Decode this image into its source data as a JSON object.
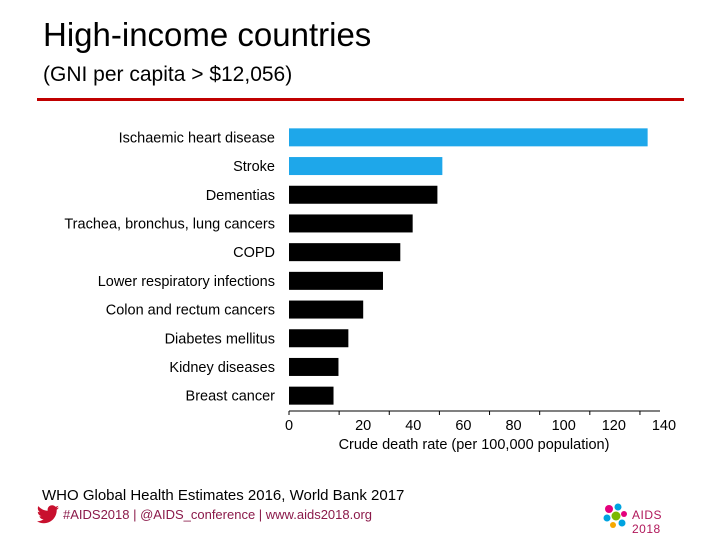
{
  "header": {
    "title": "High-income countries",
    "subtitle": "(GNI per capita > $12,056)"
  },
  "chart_data": {
    "type": "bar",
    "orientation": "horizontal",
    "categories": [
      "Ischaemic heart disease",
      "Stroke",
      "Dementias",
      "Trachea, bronchus, lung cancers",
      "COPD",
      "Lower respiratory infections",
      "Colon and rectum cancers",
      "Diabetes mellitus",
      "Kidney diseases",
      "Breast cancer"
    ],
    "values": [
      145,
      62,
      60,
      50,
      45,
      38,
      30,
      24,
      20,
      18
    ],
    "colors": [
      "#1ea7ea",
      "#1ea7ea",
      "#000000",
      "#000000",
      "#000000",
      "#000000",
      "#000000",
      "#000000",
      "#000000",
      "#000000"
    ],
    "xticks": [
      "0",
      "20",
      "40",
      "60",
      "80",
      "100",
      "120",
      "140"
    ],
    "xlabel": "Crude death rate (per 100,000 population)",
    "xlim": [
      0,
      150
    ],
    "grid": false,
    "legend": "none"
  },
  "footer": {
    "source": "WHO Global Health Estimates 2016, World Bank 2017",
    "links": "#AIDS2018 | @AIDS_conference | www.aids2018.org",
    "logo_text": "AIDS 2018",
    "twitter_icon": "twitter-bird-icon",
    "logo_icon": "aids2018-ribbon-icon"
  }
}
